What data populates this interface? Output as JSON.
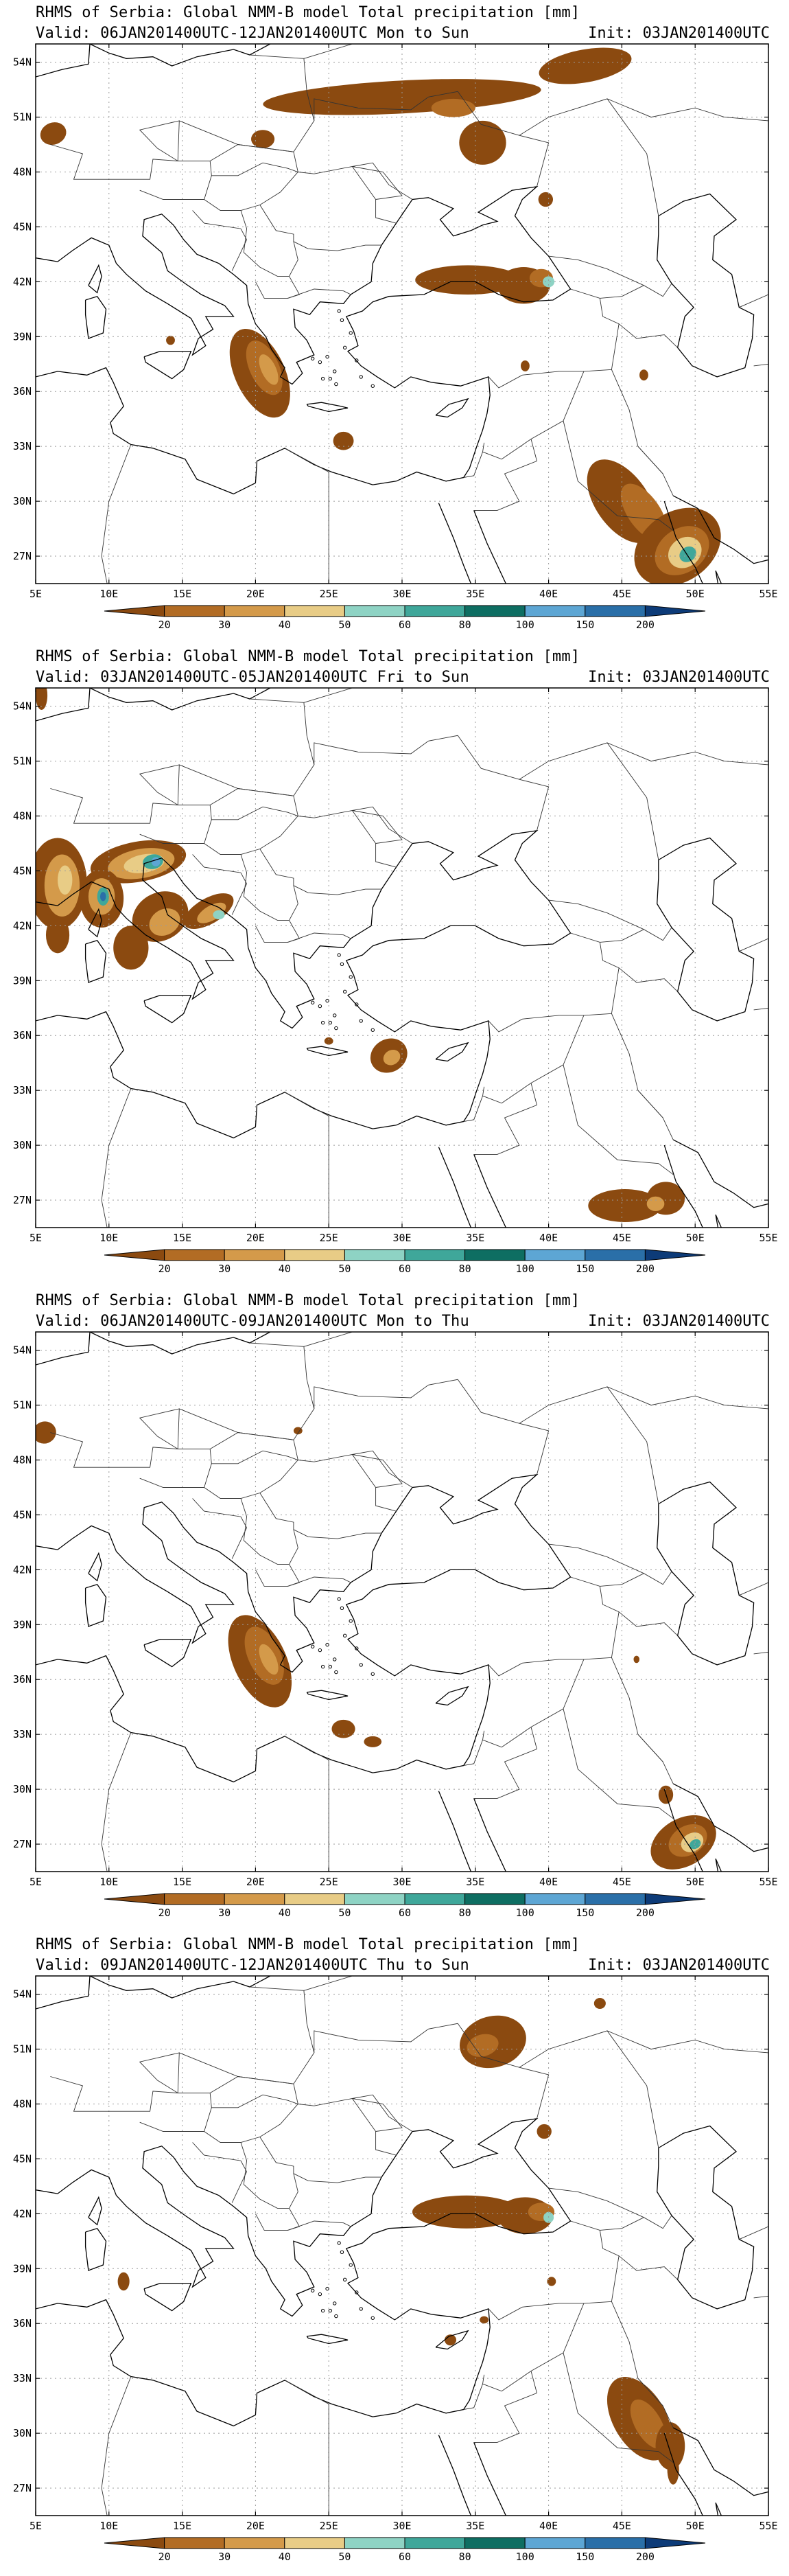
{
  "panels": [
    {
      "title": "RHMS of Serbia: Global NMM-B model Total precipitation [mm]",
      "valid": "Valid: 06JAN201400UTC-12JAN201400UTC Mon to Sun",
      "init": "Init: 03JAN201400UTC"
    },
    {
      "title": "RHMS of Serbia: Global NMM-B model Total precipitation [mm]",
      "valid": "Valid: 03JAN201400UTC-05JAN201400UTC Fri to Sun",
      "init": "Init: 03JAN201400UTC"
    },
    {
      "title": "RHMS of Serbia: Global NMM-B model Total precipitation [mm]",
      "valid": "Valid: 06JAN201400UTC-09JAN201400UTC Mon to Thu",
      "init": "Init: 03JAN201400UTC"
    },
    {
      "title": "RHMS of Serbia: Global NMM-B model Total precipitation [mm]",
      "valid": "Valid: 09JAN201400UTC-12JAN201400UTC Thu to Sun",
      "init": "Init: 03JAN201400UTC"
    }
  ],
  "axes": {
    "lat_labels": [
      "54N",
      "51N",
      "48N",
      "45N",
      "42N",
      "39N",
      "36N",
      "33N",
      "30N",
      "27N"
    ],
    "lon_labels": [
      "5E",
      "10E",
      "15E",
      "20E",
      "25E",
      "30E",
      "35E",
      "40E",
      "45E",
      "50E",
      "55E"
    ]
  },
  "legend": {
    "levels": [
      "20",
      "30",
      "40",
      "50",
      "60",
      "80",
      "100",
      "150",
      "200"
    ],
    "colors": [
      "#8b4a10",
      "#b26c24",
      "#d49a4a",
      "#e8cc86",
      "#8ed3c4",
      "#3fa79a",
      "#0e6e62",
      "#5da6d4",
      "#2a6fa8",
      "#0d3b78"
    ]
  },
  "colors": {
    "land_outline": "#000000",
    "grid": "#9a9a9a",
    "bg": "#ffffff"
  }
}
